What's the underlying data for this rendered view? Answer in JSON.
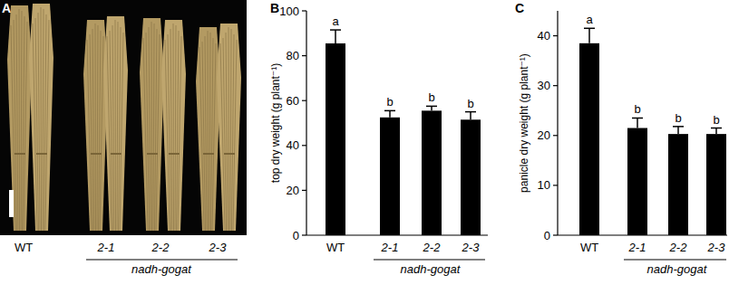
{
  "photo_panel": {
    "panel_label": "A",
    "labels": [
      "WT",
      "2-1",
      "2-2",
      "2-3"
    ],
    "group_label": "nadh-gogat"
  },
  "chart_data": [
    {
      "type": "bar",
      "title": "B",
      "y_label": "top dry weight (g plant⁻¹)",
      "categories": [
        "WT",
        "2-1",
        "2-2",
        "2-3"
      ],
      "group_label": "nadh-gogat",
      "values": [
        85.5,
        52.5,
        55.5,
        51.5
      ],
      "errors": [
        6,
        3,
        2,
        3.5
      ],
      "significance": [
        "a",
        "b",
        "b",
        "b"
      ],
      "color": "#000000",
      "ylim": [
        0,
        100
      ],
      "yticks": [
        0,
        20,
        40,
        60,
        80,
        100
      ],
      "grid": false
    },
    {
      "type": "bar",
      "title": "C",
      "y_label": "panicle dry weight (g plant⁻¹)",
      "categories": [
        "WT",
        "2-1",
        "2-2",
        "2-3"
      ],
      "group_label": "nadh-gogat",
      "values": [
        38.5,
        21.5,
        20.3,
        20.3
      ],
      "errors": [
        3,
        2,
        1.5,
        1.2
      ],
      "significance": [
        "a",
        "b",
        "b",
        "b"
      ],
      "color": "#000000",
      "ylim": [
        0,
        45
      ],
      "yticks": [
        0,
        10,
        20,
        30,
        40
      ],
      "grid": false
    }
  ]
}
